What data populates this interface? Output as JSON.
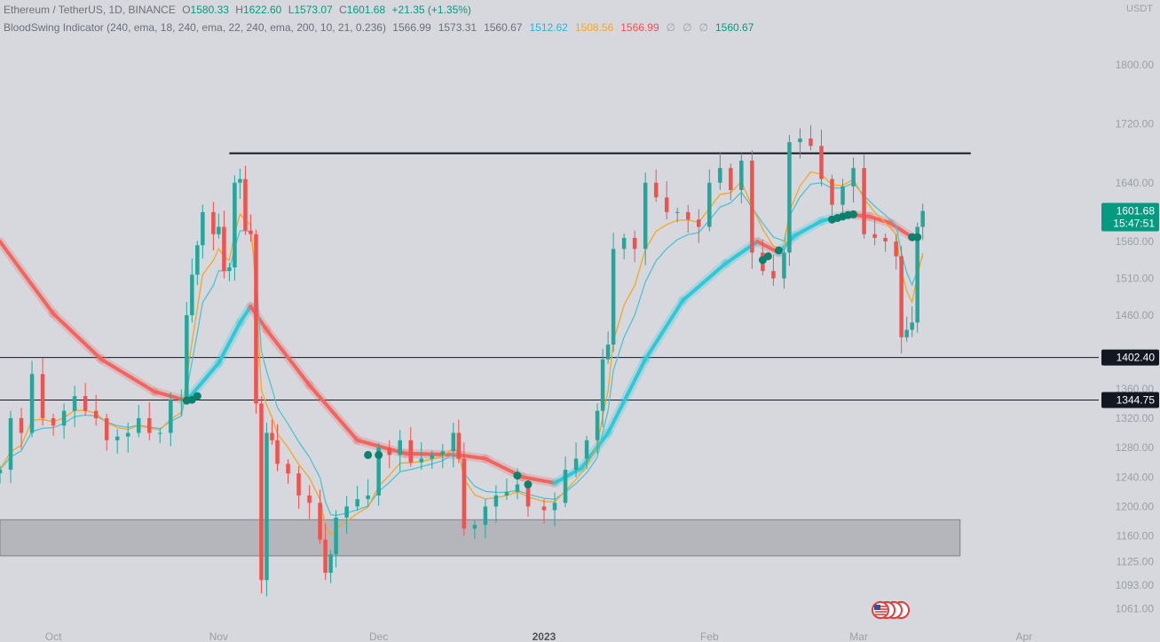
{
  "header": {
    "symbol": "Ethereum / TetherUS, 1D, BINANCE",
    "ohlc": [
      {
        "label": "O",
        "value": "1580.33"
      },
      {
        "label": "H",
        "value": "1622.60"
      },
      {
        "label": "L",
        "value": "1573.07"
      },
      {
        "label": "C",
        "value": "1601.68"
      }
    ],
    "change": "+21.35 (+1.35%)",
    "currency": "USDT"
  },
  "indicator": {
    "name": "BloodSwing Indicator (240, ema, 18, 240, ema, 22, 240, ema, 200, 10, 21, 0.236)",
    "values": [
      {
        "text": "1566.99",
        "color": "#6b6f7a"
      },
      {
        "text": "1573.31",
        "color": "#6b6f7a"
      },
      {
        "text": "1560.67",
        "color": "#6b6f7a"
      },
      {
        "text": "1512.62",
        "color": "#26b8d0"
      },
      {
        "text": "1508.56",
        "color": "#f5a623"
      },
      {
        "text": "1566.99",
        "color": "#f0524f"
      },
      {
        "text": "∅",
        "color": "#9a9ea8"
      },
      {
        "text": "∅",
        "color": "#9a9ea8"
      },
      {
        "text": "∅",
        "color": "#9a9ea8"
      },
      {
        "text": "1560.67",
        "color": "#089981"
      }
    ]
  },
  "colors": {
    "up": "#26a69a",
    "down": "#ef5350",
    "slow_ema_bull": "#2ec8d8",
    "slow_ema_bear": "#f06560",
    "fast_ema": "#f5a623",
    "mid_ema": "#4fc3d0"
  },
  "chart_data": {
    "type": "candlestick",
    "y_axis": {
      "ticks": [
        1800.0,
        1720.0,
        1640.0,
        1560.0,
        1510.0,
        1460.0,
        1360.0,
        1320.0,
        1280.0,
        1240.0,
        1200.0,
        1160.0,
        1125.0,
        1093.0,
        1061.0
      ],
      "tick_labels": [
        "1800.00",
        "1720.00",
        "1640.00",
        "1560.00",
        "1510.00",
        "1460.00",
        "1360.00",
        "1320.00",
        "1280.00",
        "1240.00",
        "1200.00",
        "1160.00",
        "1125.00",
        "1093.00",
        "1061.00"
      ],
      "range": [
        1040,
        1840
      ]
    },
    "x_axis": {
      "ticks": [
        {
          "label": "Oct",
          "date": "2022-10-01"
        },
        {
          "label": "Nov",
          "date": "2022-11-01"
        },
        {
          "label": "Dec",
          "date": "2022-12-01"
        },
        {
          "label": "2023",
          "date": "2023-01-01"
        },
        {
          "label": "Feb",
          "date": "2023-02-01"
        },
        {
          "label": "Mar",
          "date": "2023-03-01"
        },
        {
          "label": "Apr",
          "date": "2023-04-01"
        }
      ],
      "range": [
        "2022-09-21",
        "2023-04-15"
      ]
    },
    "price_labels": [
      {
        "value": 1601.68,
        "text": "1601.68",
        "subtext": "15:47:51",
        "color": "#089981"
      },
      {
        "value": 1402.4,
        "text": "1402.40",
        "color": "#131722"
      },
      {
        "value": 1344.75,
        "text": "1344.75",
        "color": "#131722"
      }
    ],
    "horizontal_lines": [
      {
        "price": 1402.4,
        "from": "2022-09-21",
        "to": "2023-04-15"
      },
      {
        "price": 1344.75,
        "from": "2022-09-21",
        "to": "2023-04-15"
      },
      {
        "price": 1680,
        "from": "2022-11-03",
        "to": "2023-03-22"
      }
    ],
    "zone": {
      "top": 1182,
      "bottom": 1133,
      "from": "2022-09-21",
      "to": "2023-03-20"
    },
    "slow_ema": [
      [
        "2022-09-21",
        1560
      ],
      [
        "2022-10-01",
        1462
      ],
      [
        "2022-10-10",
        1400
      ],
      [
        "2022-10-20",
        1356
      ],
      [
        "2022-10-26",
        1344
      ],
      [
        "2022-11-01",
        1395
      ],
      [
        "2022-11-05",
        1450
      ],
      [
        "2022-11-07",
        1472
      ],
      [
        "2022-11-10",
        1440
      ],
      [
        "2022-11-18",
        1365
      ],
      [
        "2022-11-27",
        1290
      ],
      [
        "2022-12-06",
        1272
      ],
      [
        "2022-12-16",
        1270
      ],
      [
        "2022-12-21",
        1265
      ],
      [
        "2022-12-28",
        1240
      ],
      [
        "2023-01-03",
        1232
      ],
      [
        "2023-01-08",
        1252
      ],
      [
        "2023-01-13",
        1300
      ],
      [
        "2023-01-20",
        1400
      ],
      [
        "2023-01-27",
        1480
      ],
      [
        "2023-02-04",
        1530
      ],
      [
        "2023-02-10",
        1560
      ],
      [
        "2023-02-14",
        1545
      ],
      [
        "2023-02-17",
        1568
      ],
      [
        "2023-02-22",
        1588
      ],
      [
        "2023-02-27",
        1597
      ],
      [
        "2023-03-03",
        1594
      ],
      [
        "2023-03-07",
        1585
      ],
      [
        "2023-03-11",
        1566
      ]
    ],
    "ema_crossovers": [
      [
        "2022-10-26",
        1344
      ],
      [
        "2022-10-27",
        1345
      ],
      [
        "2022-10-28",
        1350
      ],
      [
        "2022-11-29",
        1270
      ],
      [
        "2022-12-01",
        1270
      ],
      [
        "2022-12-27",
        1242
      ],
      [
        "2022-12-29",
        1230
      ],
      [
        "2023-02-11",
        1535
      ],
      [
        "2023-02-12",
        1540
      ],
      [
        "2023-02-14",
        1548
      ],
      [
        "2023-02-24",
        1590
      ],
      [
        "2023-02-25",
        1592
      ],
      [
        "2023-02-26",
        1594
      ],
      [
        "2023-02-27",
        1596
      ],
      [
        "2023-02-28",
        1597
      ],
      [
        "2023-03-11",
        1566
      ],
      [
        "2023-03-12",
        1566
      ]
    ],
    "candles_close": [
      [
        "2022-09-21",
        1250
      ],
      [
        "2022-09-23",
        1320
      ],
      [
        "2022-09-25",
        1300
      ],
      [
        "2022-09-27",
        1380
      ],
      [
        "2022-09-29",
        1320
      ],
      [
        "2022-10-01",
        1310
      ],
      [
        "2022-10-03",
        1330
      ],
      [
        "2022-10-05",
        1350
      ],
      [
        "2022-10-07",
        1330
      ],
      [
        "2022-10-09",
        1320
      ],
      [
        "2022-10-11",
        1290
      ],
      [
        "2022-10-13",
        1295
      ],
      [
        "2022-10-15",
        1300
      ],
      [
        "2022-10-17",
        1320
      ],
      [
        "2022-10-19",
        1300
      ],
      [
        "2022-10-21",
        1300
      ],
      [
        "2022-10-23",
        1345
      ],
      [
        "2022-10-25",
        1345
      ],
      [
        "2022-10-26",
        1460
      ],
      [
        "2022-10-27",
        1515
      ],
      [
        "2022-10-28",
        1555
      ],
      [
        "2022-10-29",
        1600
      ],
      [
        "2022-10-31",
        1570
      ],
      [
        "2022-11-01",
        1580
      ],
      [
        "2022-11-02",
        1520
      ],
      [
        "2022-11-03",
        1525
      ],
      [
        "2022-11-04",
        1640
      ],
      [
        "2022-11-05",
        1645
      ],
      [
        "2022-11-06",
        1575
      ],
      [
        "2022-11-07",
        1570
      ],
      [
        "2022-11-08",
        1340
      ],
      [
        "2022-11-09",
        1100
      ],
      [
        "2022-11-10",
        1300
      ],
      [
        "2022-11-11",
        1290
      ],
      [
        "2022-11-12",
        1258
      ],
      [
        "2022-11-14",
        1245
      ],
      [
        "2022-11-16",
        1215
      ],
      [
        "2022-11-18",
        1205
      ],
      [
        "2022-11-20",
        1155
      ],
      [
        "2022-11-21",
        1110
      ],
      [
        "2022-11-22",
        1135
      ],
      [
        "2022-11-23",
        1185
      ],
      [
        "2022-11-25",
        1200
      ],
      [
        "2022-11-27",
        1210
      ],
      [
        "2022-11-29",
        1215
      ],
      [
        "2022-12-01",
        1280
      ],
      [
        "2022-12-03",
        1270
      ],
      [
        "2022-12-05",
        1290
      ],
      [
        "2022-12-07",
        1260
      ],
      [
        "2022-12-09",
        1265
      ],
      [
        "2022-12-11",
        1270
      ],
      [
        "2022-12-13",
        1275
      ],
      [
        "2022-12-15",
        1300
      ],
      [
        "2022-12-16",
        1265
      ],
      [
        "2022-12-17",
        1170
      ],
      [
        "2022-12-19",
        1175
      ],
      [
        "2022-12-21",
        1200
      ],
      [
        "2022-12-23",
        1215
      ],
      [
        "2022-12-25",
        1220
      ],
      [
        "2022-12-27",
        1230
      ],
      [
        "2022-12-29",
        1200
      ],
      [
        "2023-01-01",
        1195
      ],
      [
        "2023-01-03",
        1205
      ],
      [
        "2023-01-05",
        1250
      ],
      [
        "2023-01-07",
        1265
      ],
      [
        "2023-01-09",
        1290
      ],
      [
        "2023-01-11",
        1330
      ],
      [
        "2023-01-12",
        1400
      ],
      [
        "2023-01-13",
        1420
      ],
      [
        "2023-01-14",
        1550
      ],
      [
        "2023-01-16",
        1565
      ],
      [
        "2023-01-18",
        1550
      ],
      [
        "2023-01-20",
        1640
      ],
      [
        "2023-01-22",
        1620
      ],
      [
        "2023-01-24",
        1600
      ],
      [
        "2023-01-26",
        1600
      ],
      [
        "2023-01-28",
        1590
      ],
      [
        "2023-01-30",
        1580
      ],
      [
        "2023-02-01",
        1640
      ],
      [
        "2023-02-03",
        1660
      ],
      [
        "2023-02-05",
        1630
      ],
      [
        "2023-02-07",
        1670
      ],
      [
        "2023-02-09",
        1545
      ],
      [
        "2023-02-11",
        1520
      ],
      [
        "2023-02-13",
        1510
      ],
      [
        "2023-02-15",
        1545
      ],
      [
        "2023-02-16",
        1695
      ],
      [
        "2023-02-18",
        1700
      ],
      [
        "2023-02-20",
        1690
      ],
      [
        "2023-02-22",
        1645
      ],
      [
        "2023-02-24",
        1610
      ],
      [
        "2023-02-26",
        1635
      ],
      [
        "2023-02-28",
        1660
      ],
      [
        "2023-03-02",
        1570
      ],
      [
        "2023-03-04",
        1565
      ],
      [
        "2023-03-06",
        1560
      ],
      [
        "2023-03-08",
        1540
      ],
      [
        "2023-03-09",
        1430
      ],
      [
        "2023-03-10",
        1440
      ],
      [
        "2023-03-11",
        1450
      ],
      [
        "2023-03-12",
        1580
      ],
      [
        "2023-03-13",
        1601.68
      ]
    ]
  }
}
